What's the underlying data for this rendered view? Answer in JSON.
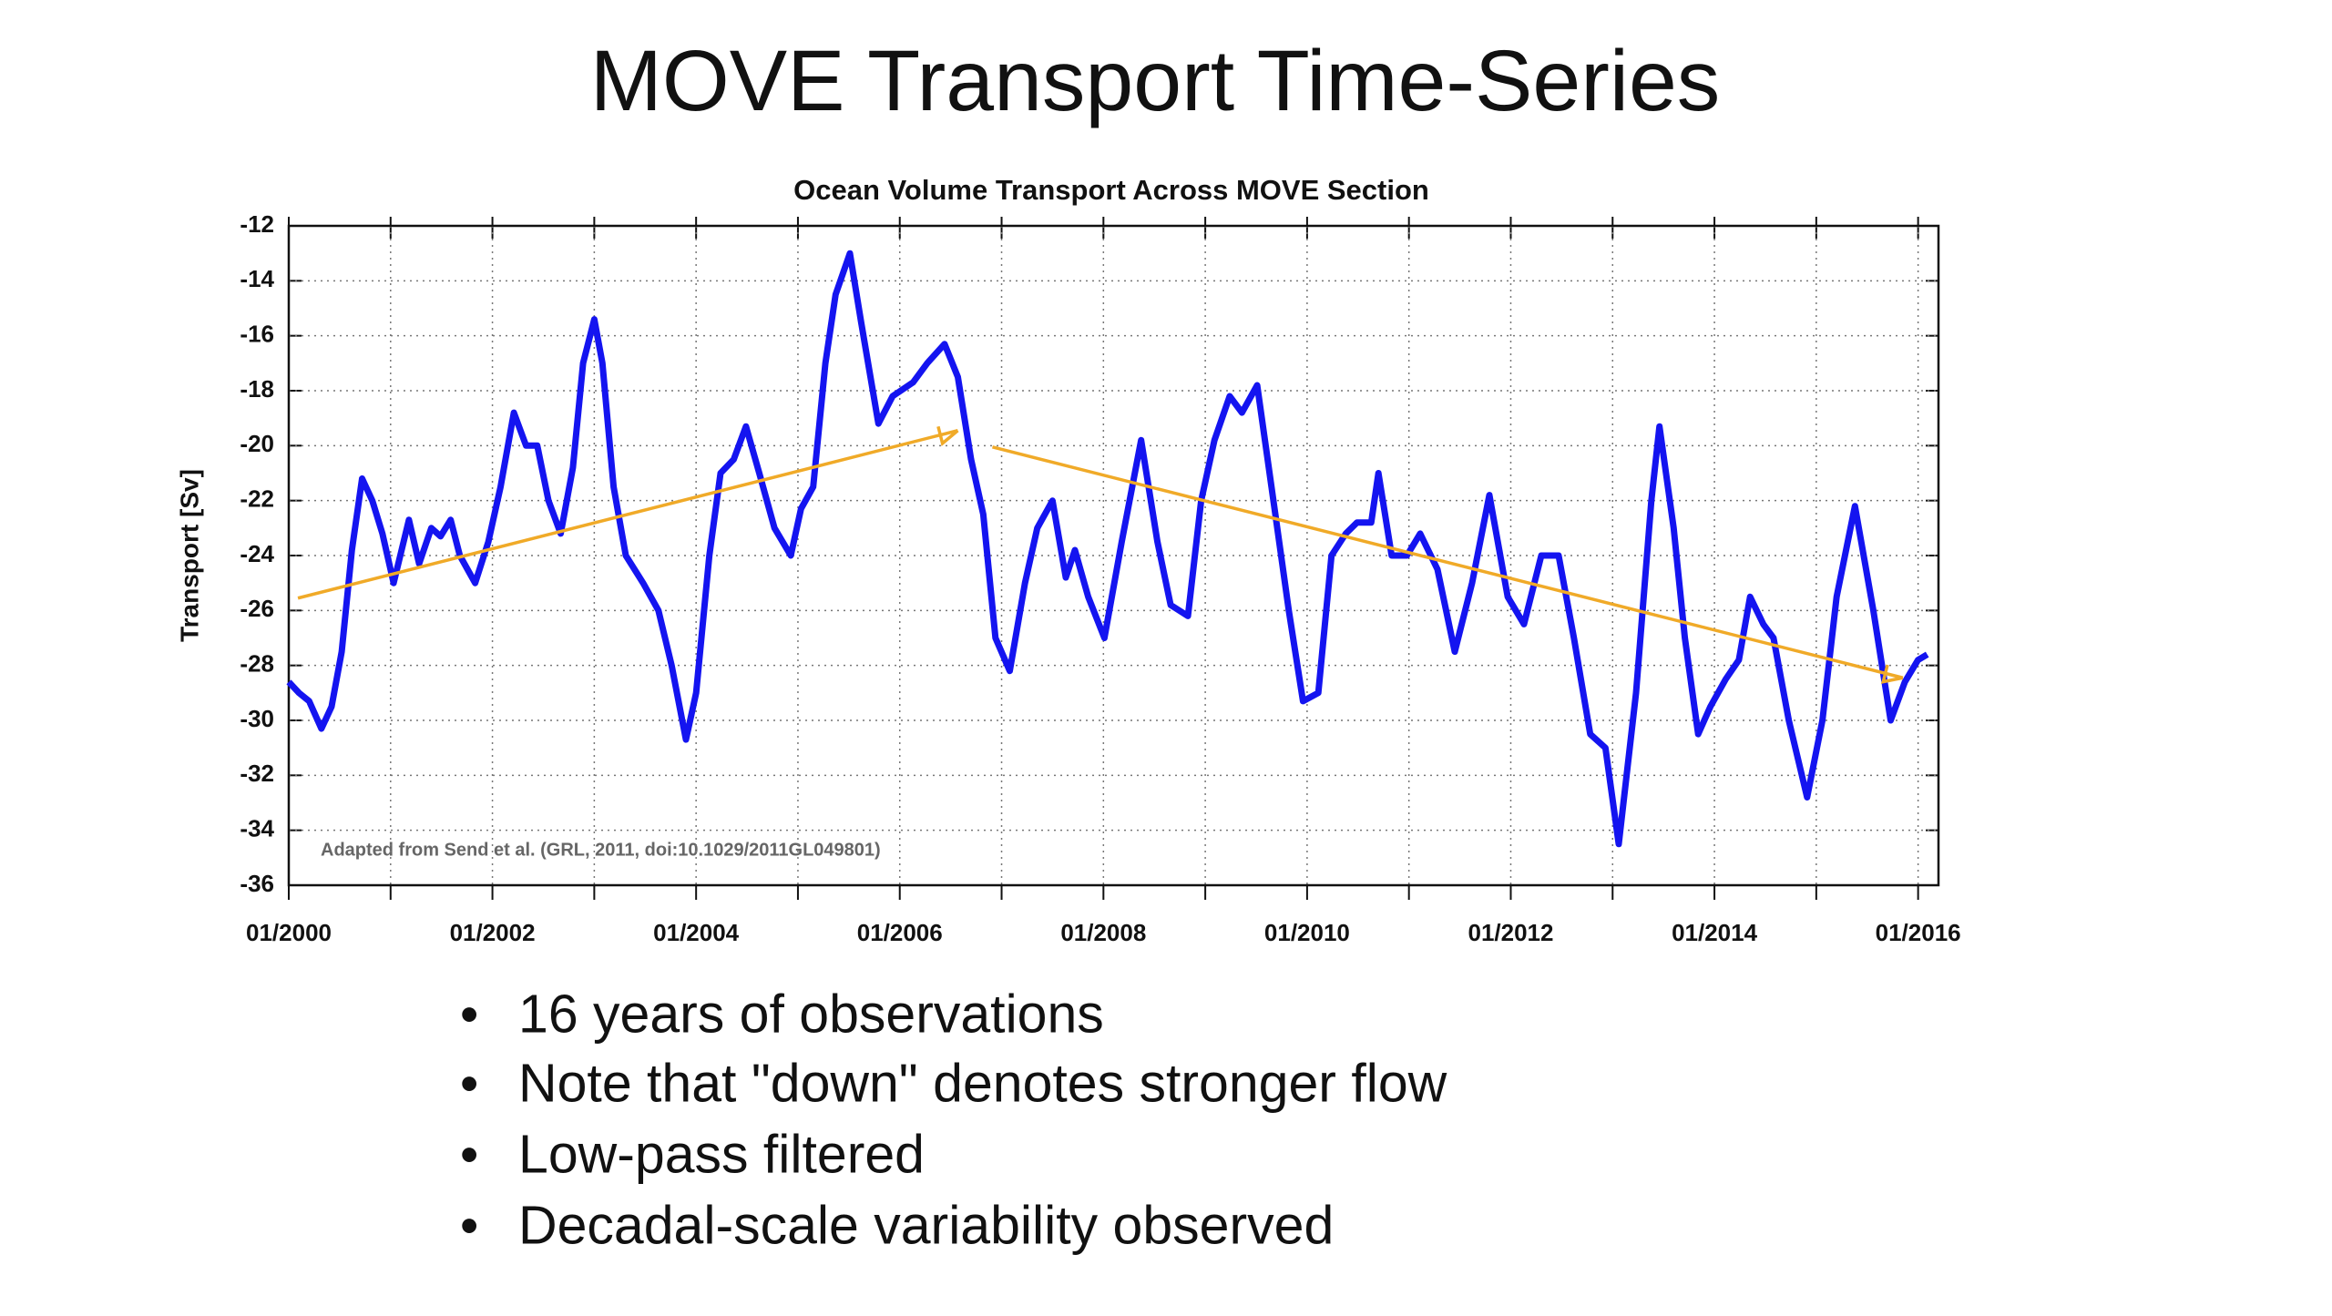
{
  "slide": {
    "title": "MOVE Transport Time-Series",
    "bullets": [
      "16 years of observations",
      "Note that \"down\" denotes stronger flow",
      "Low-pass filtered",
      "Decadal-scale variability observed"
    ]
  },
  "chart_data": {
    "type": "line",
    "title": "Ocean Volume Transport Across MOVE Section",
    "y_label": "Transport [Sv]",
    "note": "Adapted from Send et al. (GRL, 2011, doi:10.1029/2011GL049801)",
    "xlim": [
      2000,
      2016.2
    ],
    "xticks": [
      {
        "value": 2000,
        "label": "01/2000"
      },
      {
        "value": 2002,
        "label": "01/2002"
      },
      {
        "value": 2004,
        "label": "01/2004"
      },
      {
        "value": 2006,
        "label": "01/2006"
      },
      {
        "value": 2008,
        "label": "01/2008"
      },
      {
        "value": 2010,
        "label": "01/2010"
      },
      {
        "value": 2012,
        "label": "01/2012"
      },
      {
        "value": 2014,
        "label": "01/2014"
      },
      {
        "value": 2016,
        "label": "01/2016"
      }
    ],
    "x_minor_ticks": [
      2001,
      2003,
      2005,
      2007,
      2009,
      2011,
      2013,
      2015
    ],
    "ylim": [
      -36,
      -12
    ],
    "yticks": [
      -36,
      -34,
      -32,
      -30,
      -28,
      -26,
      -24,
      -22,
      -20,
      -18,
      -16,
      -14,
      -12
    ],
    "grid": true,
    "series": [
      {
        "color": "#1414f0",
        "x": [
          2000.0,
          2000.1,
          2000.2,
          2000.32,
          2000.42,
          2000.52,
          2000.62,
          2000.72,
          2000.82,
          2000.92,
          2001.03,
          2001.18,
          2001.28,
          2001.4,
          2001.49,
          2001.59,
          2001.68,
          2001.83,
          2001.96,
          2002.08,
          2002.21,
          2002.33,
          2002.44,
          2002.55,
          2002.67,
          2002.79,
          2002.89,
          2003.0,
          2003.08,
          2003.19,
          2003.31,
          2003.48,
          2003.63,
          2003.76,
          2003.9,
          2004.0,
          2004.13,
          2004.24,
          2004.37,
          2004.49,
          2004.62,
          2004.77,
          2004.93,
          2005.03,
          2005.15,
          2005.27,
          2005.37,
          2005.51,
          2005.62,
          2005.79,
          2005.93,
          2006.13,
          2006.27,
          2006.44,
          2006.57,
          2006.7,
          2006.82,
          2006.94,
          2007.08,
          2007.23,
          2007.35,
          2007.5,
          2007.63,
          2007.72,
          2007.85,
          2008.01,
          2008.18,
          2008.37,
          2008.53,
          2008.66,
          2008.83,
          2008.96,
          2009.09,
          2009.24,
          2009.36,
          2009.51,
          2009.65,
          2009.82,
          2009.96,
          2010.11,
          2010.24,
          2010.38,
          2010.49,
          2010.63,
          2010.7,
          2010.83,
          2010.98,
          2011.11,
          2011.28,
          2011.45,
          2011.62,
          2011.79,
          2011.97,
          2012.13,
          2012.3,
          2012.47,
          2012.62,
          2012.78,
          2012.93,
          2013.06,
          2013.23,
          2013.38,
          2013.46,
          2013.6,
          2013.71,
          2013.84,
          2013.96,
          2014.11,
          2014.24,
          2014.35,
          2014.48,
          2014.58,
          2014.73,
          2014.91,
          2015.06,
          2015.2,
          2015.38,
          2015.56,
          2015.73,
          2015.87,
          2016.0,
          2016.09
        ],
        "values": [
          -28.6,
          -29.0,
          -29.3,
          -30.3,
          -29.5,
          -27.5,
          -23.8,
          -21.2,
          -22.0,
          -23.2,
          -25.0,
          -22.7,
          -24.3,
          -23.0,
          -23.3,
          -22.7,
          -24.0,
          -25.0,
          -23.5,
          -21.5,
          -18.8,
          -20.0,
          -20.0,
          -22.0,
          -23.2,
          -20.8,
          -17.0,
          -15.4,
          -17.0,
          -21.5,
          -24.0,
          -25.0,
          -26.0,
          -28.0,
          -30.7,
          -29.0,
          -24.0,
          -21.0,
          -20.5,
          -19.3,
          -21.0,
          -23.0,
          -24.0,
          -22.3,
          -21.5,
          -17.0,
          -14.5,
          -13.0,
          -15.5,
          -19.2,
          -18.2,
          -17.7,
          -17.0,
          -16.3,
          -17.5,
          -20.5,
          -22.5,
          -27.0,
          -28.2,
          -25.0,
          -23.0,
          -22.0,
          -24.8,
          -23.8,
          -25.5,
          -27.0,
          -23.5,
          -19.8,
          -23.5,
          -25.8,
          -26.2,
          -22.0,
          -19.8,
          -18.2,
          -18.8,
          -17.8,
          -21.5,
          -26.0,
          -29.3,
          -29.0,
          -24.0,
          -23.2,
          -22.8,
          -22.8,
          -21.0,
          -24.0,
          -24.0,
          -23.2,
          -24.5,
          -27.5,
          -25.0,
          -21.8,
          -25.5,
          -26.5,
          -24.0,
          -24.0,
          -27.0,
          -30.5,
          -31.0,
          -34.5,
          -29.0,
          -22.0,
          -19.3,
          -23.0,
          -27.0,
          -30.5,
          -29.5,
          -28.5,
          -27.8,
          -25.5,
          -26.5,
          -27.0,
          -30.0,
          -32.8,
          -30.0,
          -25.5,
          -22.2,
          -26.0,
          -30.0,
          -28.6,
          -27.8,
          -27.6
        ]
      }
    ],
    "trend_lines": [
      {
        "color": "#f0aa28",
        "x": [
          2000.09,
          2006.57
        ],
        "values": [
          -25.55,
          -19.45
        ]
      },
      {
        "color": "#f0aa28",
        "x": [
          2006.91,
          2015.85
        ],
        "values": [
          -20.05,
          -28.45
        ]
      }
    ]
  }
}
